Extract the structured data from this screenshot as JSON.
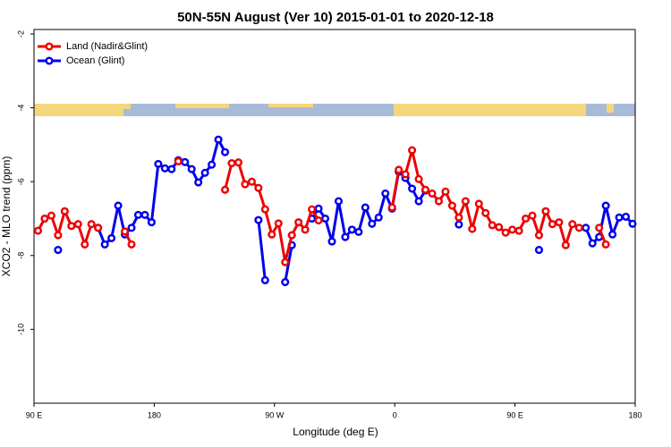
{
  "chart_data": {
    "type": "line",
    "title": "50N-55N August (Ver 10)   2015-01-01 to 2020-12-18",
    "x_label": "Longitude (deg E)",
    "y_label": "XCO2 - MLO trend (ppm)",
    "xlim": [
      90,
      540
    ],
    "xticks": [
      {
        "value": 90,
        "label": "90 E"
      },
      {
        "value": 180,
        "label": "180"
      },
      {
        "value": 270,
        "label": "90 W"
      },
      {
        "value": 360,
        "label": "0"
      },
      {
        "value": 450,
        "label": "90 E"
      },
      {
        "value": 540,
        "label": "180"
      }
    ],
    "ylim": [
      -12,
      -2
    ],
    "yticks": [
      -2,
      -4,
      -6,
      -8,
      -10
    ],
    "legend": "top-left",
    "x": [
      93,
      98,
      103,
      108,
      113,
      118,
      123,
      128,
      133,
      138,
      143,
      148,
      153,
      158,
      163,
      168,
      173,
      178,
      183,
      188,
      193,
      198,
      203,
      208,
      213,
      218,
      223,
      228,
      233,
      238,
      243,
      248,
      253,
      258,
      263,
      268,
      273,
      278,
      283,
      288,
      293,
      298,
      303,
      308,
      313,
      318,
      323,
      328,
      333,
      338,
      343,
      348,
      353,
      358,
      363,
      368,
      373,
      378,
      383,
      388,
      393,
      398,
      403,
      408,
      413,
      418,
      423,
      428,
      433,
      438,
      443,
      448,
      453,
      458,
      463,
      468,
      473,
      478,
      483,
      488,
      493,
      498,
      503,
      508,
      513,
      518,
      523,
      528,
      533,
      538
    ],
    "series": [
      {
        "name": "Land (Nadir&Glint)",
        "color": "#ee0000",
        "values": [
          -7.33,
          -7.0,
          -6.92,
          -7.45,
          -6.8,
          -7.2,
          -7.15,
          -7.7,
          -7.15,
          -7.25,
          null,
          null,
          null,
          -7.35,
          -7.7,
          null,
          null,
          null,
          null,
          null,
          null,
          -5.45,
          null,
          null,
          null,
          null,
          null,
          null,
          -6.22,
          -5.5,
          -5.48,
          -6.07,
          -6.0,
          -6.17,
          -6.75,
          -7.43,
          -7.13,
          -8.18,
          -7.45,
          -7.1,
          -7.3,
          -6.75,
          -7.05,
          null,
          null,
          null,
          null,
          null,
          null,
          null,
          null,
          null,
          null,
          -6.7,
          -5.68,
          -5.8,
          -5.15,
          -5.93,
          -6.22,
          -6.32,
          -6.53,
          -6.27,
          -6.65,
          -6.97,
          -6.53,
          -7.28,
          -6.6,
          -6.85,
          -7.18,
          -7.23,
          -7.38,
          -7.3,
          -7.33,
          -7.0,
          -6.92,
          -7.45,
          -6.8,
          -7.15,
          -7.1,
          -7.72,
          -7.15,
          -7.25,
          null,
          null,
          -7.25,
          -7.7,
          null,
          null,
          null,
          null
        ]
      },
      {
        "name": "Ocean (Glint)",
        "color": "#0000ee",
        "values": [
          null,
          null,
          null,
          -7.85,
          null,
          null,
          null,
          null,
          null,
          -7.25,
          -7.7,
          -7.53,
          -6.65,
          -7.43,
          -7.25,
          -6.9,
          -6.9,
          -7.1,
          -5.52,
          -5.64,
          -5.66,
          -5.42,
          -5.47,
          -5.66,
          -6.02,
          -5.76,
          -5.54,
          -4.86,
          -5.2,
          null,
          null,
          null,
          null,
          -7.04,
          -8.67,
          null,
          null,
          -8.72,
          -7.72,
          null,
          null,
          -7.0,
          -6.73,
          -7.0,
          -7.62,
          -6.53,
          -7.5,
          -7.3,
          -7.36,
          -6.7,
          -7.14,
          -6.97,
          -6.32,
          -6.73,
          -5.73,
          -5.9,
          -6.19,
          -6.53,
          -6.24,
          null,
          null,
          null,
          null,
          -7.16,
          null,
          null,
          null,
          null,
          null,
          null,
          null,
          null,
          null,
          null,
          null,
          -7.85,
          null,
          null,
          null,
          null,
          null,
          null,
          -7.25,
          -7.67,
          -7.5,
          -6.65,
          -7.43,
          -6.97,
          -6.95,
          -7.14
        ]
      }
    ]
  }
}
